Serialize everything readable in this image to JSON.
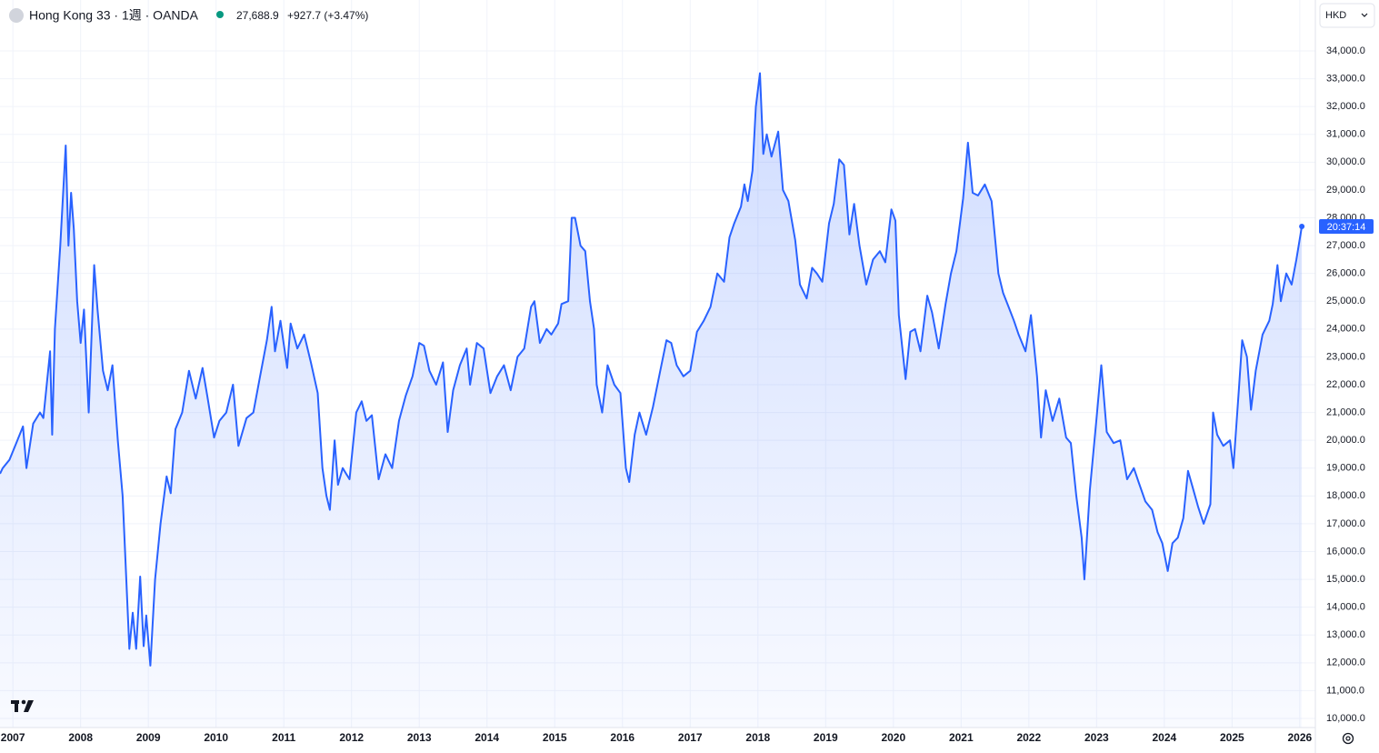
{
  "chart_data": {
    "type": "area",
    "symbol_title": "Hong Kong 33 · 1週 · OANDA",
    "last_price": "27,688.9",
    "change": "+927.7 (+3.47%)",
    "currency": "HKD",
    "countdown": "20:37:14",
    "color": "#2962ff",
    "grid": true,
    "xlim": [
      2006.81,
      2026.23
    ],
    "ylim": [
      9673,
      35831
    ],
    "xticks": [
      2007,
      2008,
      2009,
      2010,
      2011,
      2012,
      2013,
      2014,
      2015,
      2016,
      2017,
      2018,
      2019,
      2020,
      2021,
      2022,
      2023,
      2024,
      2025,
      2026
    ],
    "yticks": [
      {
        "value": 10000,
        "label": "10,000.0"
      },
      {
        "value": 11000,
        "label": "11,000.0"
      },
      {
        "value": 12000,
        "label": "12,000.0"
      },
      {
        "value": 13000,
        "label": "13,000.0"
      },
      {
        "value": 14000,
        "label": "14,000.0"
      },
      {
        "value": 15000,
        "label": "15,000.0"
      },
      {
        "value": 16000,
        "label": "16,000.0"
      },
      {
        "value": 17000,
        "label": "17,000.0"
      },
      {
        "value": 18000,
        "label": "18,000.0"
      },
      {
        "value": 19000,
        "label": "19,000.0"
      },
      {
        "value": 20000,
        "label": "20,000.0"
      },
      {
        "value": 21000,
        "label": "21,000.0"
      },
      {
        "value": 22000,
        "label": "22,000.0"
      },
      {
        "value": 23000,
        "label": "23,000.0"
      },
      {
        "value": 24000,
        "label": "24,000.0"
      },
      {
        "value": 25000,
        "label": "25,000.0"
      },
      {
        "value": 26000,
        "label": "26,000.0"
      },
      {
        "value": 27000,
        "label": "27,000.0"
      },
      {
        "value": 28000,
        "label": "28,000.0"
      },
      {
        "value": 29000,
        "label": "29,000.0"
      },
      {
        "value": 30000,
        "label": "30,000.0"
      },
      {
        "value": 31000,
        "label": "31,000.0"
      },
      {
        "value": 32000,
        "label": "32,000.0"
      },
      {
        "value": 33000,
        "label": "33,000.0"
      },
      {
        "value": 34000,
        "label": "34,000.0"
      }
    ],
    "x": [
      2006.81,
      2006.85,
      2006.95,
      2007.05,
      2007.15,
      2007.2,
      2007.3,
      2007.4,
      2007.45,
      2007.5,
      2007.55,
      2007.58,
      2007.62,
      2007.7,
      2007.78,
      2007.82,
      2007.86,
      2007.9,
      2007.95,
      2008.0,
      2008.05,
      2008.12,
      2008.2,
      2008.25,
      2008.33,
      2008.4,
      2008.47,
      2008.55,
      2008.62,
      2008.72,
      2008.77,
      2008.82,
      2008.88,
      2008.93,
      2008.97,
      2009.03,
      2009.1,
      2009.18,
      2009.27,
      2009.33,
      2009.4,
      2009.5,
      2009.6,
      2009.7,
      2009.8,
      2009.87,
      2009.97,
      2010.05,
      2010.15,
      2010.25,
      2010.33,
      2010.45,
      2010.55,
      2010.65,
      2010.75,
      2010.82,
      2010.87,
      2010.95,
      2011.05,
      2011.1,
      2011.2,
      2011.3,
      2011.4,
      2011.5,
      2011.57,
      2011.63,
      2011.68,
      2011.75,
      2011.8,
      2011.87,
      2011.97,
      2012.07,
      2012.15,
      2012.22,
      2012.3,
      2012.4,
      2012.5,
      2012.6,
      2012.7,
      2012.8,
      2012.9,
      2013.0,
      2013.07,
      2013.15,
      2013.25,
      2013.35,
      2013.42,
      2013.5,
      2013.6,
      2013.7,
      2013.75,
      2013.85,
      2013.95,
      2014.05,
      2014.15,
      2014.25,
      2014.35,
      2014.45,
      2014.55,
      2014.65,
      2014.7,
      2014.78,
      2014.88,
      2014.95,
      2015.05,
      2015.1,
      2015.2,
      2015.25,
      2015.3,
      2015.38,
      2015.45,
      2015.52,
      2015.58,
      2015.62,
      2015.7,
      2015.78,
      2015.88,
      2015.97,
      2016.05,
      2016.1,
      2016.18,
      2016.25,
      2016.35,
      2016.45,
      2016.55,
      2016.65,
      2016.72,
      2016.8,
      2016.9,
      2017.0,
      2017.1,
      2017.2,
      2017.3,
      2017.4,
      2017.5,
      2017.58,
      2017.65,
      2017.75,
      2017.8,
      2017.85,
      2017.92,
      2017.97,
      2018.03,
      2018.08,
      2018.13,
      2018.2,
      2018.3,
      2018.37,
      2018.45,
      2018.55,
      2018.62,
      2018.72,
      2018.8,
      2018.87,
      2018.95,
      2019.05,
      2019.12,
      2019.2,
      2019.27,
      2019.35,
      2019.42,
      2019.5,
      2019.6,
      2019.7,
      2019.8,
      2019.88,
      2019.97,
      2020.03,
      2020.08,
      2020.18,
      2020.25,
      2020.32,
      2020.4,
      2020.5,
      2020.57,
      2020.67,
      2020.77,
      2020.85,
      2020.93,
      2021.03,
      2021.1,
      2021.17,
      2021.25,
      2021.35,
      2021.45,
      2021.55,
      2021.62,
      2021.7,
      2021.78,
      2021.85,
      2021.95,
      2022.03,
      2022.12,
      2022.18,
      2022.25,
      2022.35,
      2022.45,
      2022.55,
      2022.62,
      2022.7,
      2022.78,
      2022.82,
      2022.9,
      2023.0,
      2023.07,
      2023.15,
      2023.25,
      2023.35,
      2023.45,
      2023.55,
      2023.62,
      2023.72,
      2023.82,
      2023.9,
      2023.97,
      2024.05,
      2024.12,
      2024.2,
      2024.28,
      2024.35,
      2024.42,
      2024.5,
      2024.58,
      2024.68,
      2024.72,
      2024.78,
      2024.87,
      2024.97,
      2025.02,
      2025.1,
      2025.15,
      2025.22,
      2025.28,
      2025.35,
      2025.45,
      2025.55,
      2025.6,
      2025.67,
      2025.72,
      2025.8,
      2025.88,
      2025.95,
      2026.03
    ],
    "values": [
      18800,
      19000,
      19300,
      19900,
      20500,
      19000,
      20600,
      21000,
      20800,
      22000,
      23200,
      20200,
      24000,
      27000,
      30600,
      27000,
      28900,
      27600,
      25000,
      23500,
      24700,
      21000,
      26300,
      24700,
      22500,
      21800,
      22700,
      20000,
      18000,
      12500,
      13800,
      12500,
      15100,
      12600,
      13700,
      11900,
      15000,
      17000,
      18700,
      18100,
      20400,
      21000,
      22500,
      21500,
      22600,
      21600,
      20100,
      20700,
      21000,
      22000,
      19800,
      20800,
      21000,
      22300,
      23600,
      24800,
      23200,
      24300,
      22600,
      24200,
      23300,
      23800,
      22800,
      21700,
      19000,
      18000,
      17500,
      20000,
      18400,
      19000,
      18600,
      21000,
      21400,
      20700,
      20900,
      18600,
      19500,
      19000,
      20700,
      21600,
      22300,
      23500,
      23400,
      22500,
      22000,
      22800,
      20300,
      21800,
      22700,
      23300,
      22000,
      23500,
      23300,
      21700,
      22300,
      22700,
      21800,
      23000,
      23300,
      24800,
      25000,
      23500,
      24000,
      23800,
      24200,
      24900,
      25000,
      28000,
      28000,
      27000,
      26800,
      25000,
      24000,
      22000,
      21000,
      22700,
      22000,
      21700,
      19000,
      18500,
      20200,
      21000,
      20200,
      21200,
      22400,
      23600,
      23500,
      22700,
      22300,
      22500,
      23900,
      24300,
      24800,
      26000,
      25700,
      27300,
      27800,
      28400,
      29200,
      28600,
      29700,
      32000,
      33200,
      30300,
      31000,
      30200,
      31100,
      29000,
      28600,
      27200,
      25600,
      25100,
      26200,
      26000,
      25700,
      27800,
      28500,
      30100,
      29900,
      27400,
      28500,
      27000,
      25600,
      26500,
      26800,
      26400,
      28300,
      27900,
      24500,
      22200,
      23900,
      24000,
      23200,
      25200,
      24600,
      23300,
      24900,
      26000,
      26800,
      28700,
      30700,
      28900,
      28800,
      29200,
      28600,
      26000,
      25300,
      24800,
      24300,
      23800,
      23200,
      24500,
      22300,
      20100,
      21800,
      20700,
      21500,
      20100,
      19900,
      18000,
      16500,
      15000,
      18200,
      20800,
      22700,
      20300,
      19900,
      20000,
      18600,
      19000,
      18500,
      17800,
      17500,
      16700,
      16300,
      15300,
      16300,
      16500,
      17200,
      18900,
      18300,
      17600,
      17000,
      17700,
      21000,
      20200,
      19800,
      20000,
      19000,
      21800,
      23600,
      23000,
      21100,
      22500,
      23800,
      24300,
      24900,
      26300,
      25000,
      26000,
      25600,
      26500,
      27688.9
    ]
  }
}
